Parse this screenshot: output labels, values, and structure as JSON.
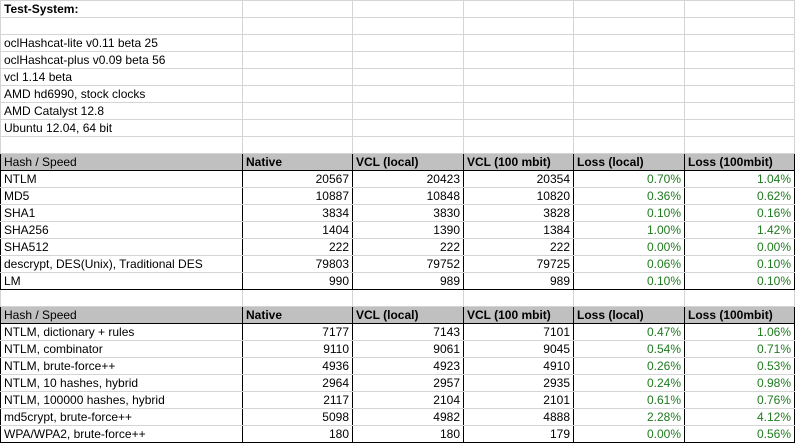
{
  "title": "Test-System:",
  "system": [
    "oclHashcat-lite v0.11 beta 25",
    "oclHashcat-plus v0.09 beta 56",
    "vcl 1.14 beta",
    "AMD hd6990, stock clocks",
    "AMD Catalyst 12.8",
    "Ubuntu 12.04, 64 bit"
  ],
  "headers": [
    "Hash / Speed",
    "Native",
    "VCL (local)",
    "VCL (100 mbit)",
    "Loss (local)",
    "Loss (100mbit)"
  ],
  "table1": [
    {
      "name": "NTLM",
      "native": "20567",
      "vcl_local": "20423",
      "vcl_100": "20354",
      "loss_local": "0.70%",
      "loss_100": "1.04%"
    },
    {
      "name": "MD5",
      "native": "10887",
      "vcl_local": "10848",
      "vcl_100": "10820",
      "loss_local": "0.36%",
      "loss_100": "0.62%"
    },
    {
      "name": "SHA1",
      "native": "3834",
      "vcl_local": "3830",
      "vcl_100": "3828",
      "loss_local": "0.10%",
      "loss_100": "0.16%"
    },
    {
      "name": "SHA256",
      "native": "1404",
      "vcl_local": "1390",
      "vcl_100": "1384",
      "loss_local": "1.00%",
      "loss_100": "1.42%"
    },
    {
      "name": "SHA512",
      "native": "222",
      "vcl_local": "222",
      "vcl_100": "222",
      "loss_local": "0.00%",
      "loss_100": "0.00%"
    },
    {
      "name": "descrypt, DES(Unix), Traditional DES",
      "native": "79803",
      "vcl_local": "79752",
      "vcl_100": "79725",
      "loss_local": "0.06%",
      "loss_100": "0.10%"
    },
    {
      "name": "LM",
      "native": "990",
      "vcl_local": "989",
      "vcl_100": "989",
      "loss_local": "0.10%",
      "loss_100": "0.10%"
    }
  ],
  "table2": [
    {
      "name": "NTLM, dictionary + rules",
      "native": "7177",
      "vcl_local": "7143",
      "vcl_100": "7101",
      "loss_local": "0.47%",
      "loss_100": "1.06%"
    },
    {
      "name": "NTLM, combinator",
      "native": "9110",
      "vcl_local": "9061",
      "vcl_100": "9045",
      "loss_local": "0.54%",
      "loss_100": "0.71%"
    },
    {
      "name": "NTLM, brute-force++",
      "native": "4936",
      "vcl_local": "4923",
      "vcl_100": "4910",
      "loss_local": "0.26%",
      "loss_100": "0.53%"
    },
    {
      "name": "NTLM, 10 hashes, hybrid",
      "native": "2964",
      "vcl_local": "2957",
      "vcl_100": "2935",
      "loss_local": "0.24%",
      "loss_100": "0.98%"
    },
    {
      "name": "NTLM, 100000 hashes, hybrid",
      "native": "2117",
      "vcl_local": "2104",
      "vcl_100": "2101",
      "loss_local": "0.61%",
      "loss_100": "0.76%"
    },
    {
      "name": "md5crypt, brute-force++",
      "native": "5098",
      "vcl_local": "4982",
      "vcl_100": "4888",
      "loss_local": "2.28%",
      "loss_100": "4.12%"
    },
    {
      "name": "WPA/WPA2, brute-force++",
      "native": "180",
      "vcl_local": "180",
      "vcl_100": "179",
      "loss_local": "0.00%",
      "loss_100": "0.56%"
    }
  ],
  "colors": {
    "header_bg": "#c0c0c0",
    "grid": "#d4d4d4",
    "loss_text": "#1f7a1f"
  }
}
